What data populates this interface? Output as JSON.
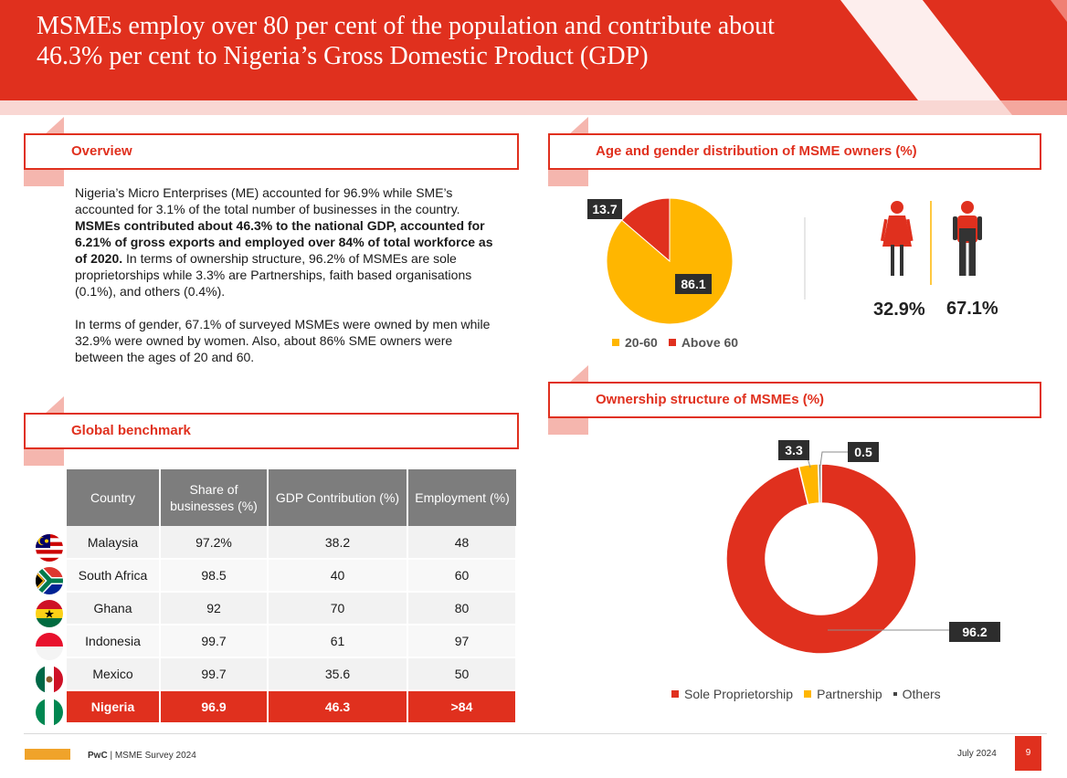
{
  "header": {
    "title": "MSMEs employ over 80 per cent of the population and contribute about 46.3% per cent to Nigeria’s Gross Domestic Product (GDP)"
  },
  "overview": {
    "title": "Overview",
    "p1_a": "Nigeria’s Micro Enterprises (ME) accounted for 96.9% while SME’s accounted for 3.1% of the total number of businesses in the country. ",
    "p1_bold": "MSMEs  contributed about 46.3% to the national GDP, accounted for 6.21% of gross exports and employed over 84% of total workforce as of 2020.",
    "p1_b": " In terms of ownership structure, 96.2% of MSMEs are sole proprietorships while 3.3% are Partnerships, faith based organisations (0.1%), and others (0.4%).",
    "p2": "In terms of gender, 67.1% of surveyed MSMEs were owned by men while 32.9% were owned by women. Also, about 86% SME owners were between the ages of 20 and 60."
  },
  "benchmark": {
    "title": "Global benchmark",
    "headers": [
      "Country",
      "Share of businesses (%)",
      "GDP Contribution (%)",
      "Employment (%)"
    ],
    "rows": [
      {
        "country": "Malaysia",
        "share": "97.2%",
        "gdp": "38.2",
        "employment": "48",
        "flag": "malaysia-flag-icon"
      },
      {
        "country": "South Africa",
        "share": "98.5",
        "gdp": "40",
        "employment": "60",
        "flag": "south-africa-flag-icon"
      },
      {
        "country": "Ghana",
        "share": "92",
        "gdp": "70",
        "employment": "80",
        "flag": "ghana-flag-icon"
      },
      {
        "country": "Indonesia",
        "share": "99.7",
        "gdp": "61",
        "employment": "97",
        "flag": "indonesia-flag-icon"
      },
      {
        "country": "Mexico",
        "share": "99.7",
        "gdp": "35.6",
        "employment": "50",
        "flag": "mexico-flag-icon"
      },
      {
        "country": "Nigeria",
        "share": "96.9",
        "gdp": "46.3",
        "employment": ">84",
        "flag": "nigeria-flag-icon"
      }
    ]
  },
  "age_gender": {
    "title": "Age and gender distribution of MSME owners (%)",
    "female_pct": "32.9%",
    "male_pct": "67.1%"
  },
  "ownership": {
    "title": "Ownership structure of MSMEs (%)"
  },
  "chart_data": [
    {
      "type": "pie",
      "title": "Age distribution of MSME owners (%)",
      "categories": [
        "20-60",
        "Above 60"
      ],
      "values": [
        86.1,
        13.7
      ],
      "labels": [
        "86.1",
        "13.7"
      ],
      "colors": [
        "#ffb600",
        "#e0301e"
      ],
      "legend": "bottom"
    },
    {
      "type": "pie",
      "subtype": "donut",
      "title": "Ownership structure of MSMEs (%)",
      "categories": [
        "Sole Proprietorship",
        "Partnership",
        "Others"
      ],
      "values": [
        96.2,
        3.3,
        0.5
      ],
      "labels": [
        "96.2",
        "3.3",
        "0.5"
      ],
      "colors": [
        "#e0301e",
        "#ffb600",
        "#7d7d7d"
      ],
      "legend": "bottom"
    }
  ],
  "footer": {
    "brand": "PwC",
    "doc": " | MSME Survey 2024",
    "date": "July 2024",
    "page": "9"
  }
}
